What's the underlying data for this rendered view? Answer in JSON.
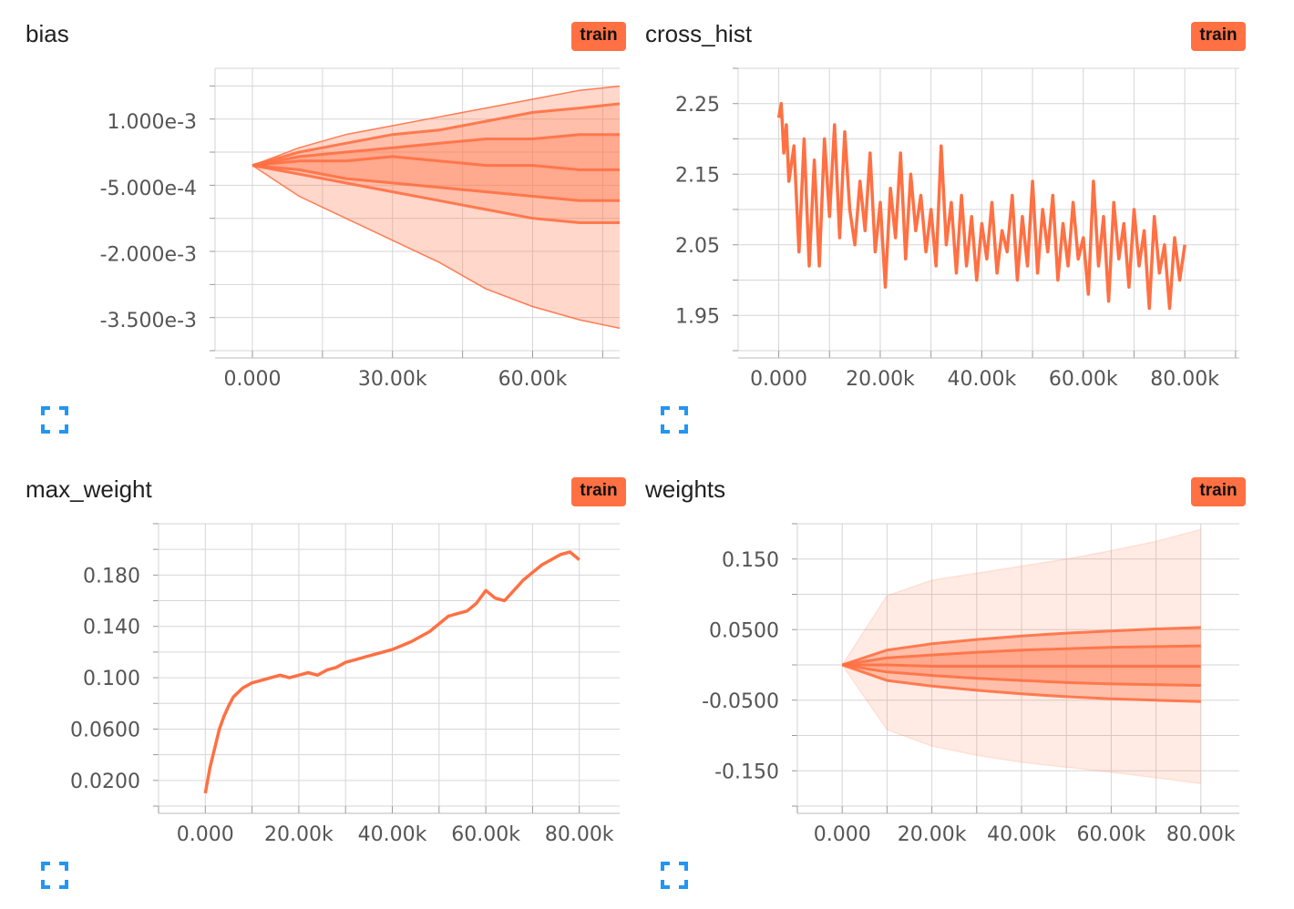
{
  "colors": {
    "accent": "#ff7043",
    "badge_bg": "#ff7043",
    "expand_icon": "#2196f3",
    "grid": "#d6d6d6"
  },
  "cards": [
    {
      "title": "bias",
      "badge": "train"
    },
    {
      "title": "cross_hist",
      "badge": "train"
    },
    {
      "title": "max_weight",
      "badge": "train"
    },
    {
      "title": "weights",
      "badge": "train"
    }
  ],
  "chart_data": [
    {
      "type": "area",
      "title": "bias",
      "variant": "distribution",
      "xlim": [
        -8000,
        80000
      ],
      "ylim": [
        -0.0042,
        0.0022
      ],
      "x_ticks": [
        0,
        30000,
        60000
      ],
      "x_tick_labels": [
        "0.000",
        "30.00k",
        "60.00k"
      ],
      "y_ticks": [
        0.001,
        -0.0005,
        -0.002,
        -0.0035
      ],
      "y_tick_labels": [
        "1.000e-3",
        "-5.000e-4",
        "-2.000e-3",
        "-3.500e-3"
      ],
      "x": [
        0,
        10000,
        20000,
        30000,
        40000,
        50000,
        60000,
        70000,
        79000
      ],
      "series": [
        {
          "values": [
            0,
            -0.0007,
            -0.0012,
            -0.0017,
            -0.0022,
            -0.0028,
            -0.0032,
            -0.0035,
            -0.0037
          ]
        },
        {
          "values": [
            0,
            -0.0002,
            -0.0004,
            -0.0006,
            -0.0008,
            -0.001,
            -0.0012,
            -0.0013,
            -0.0013
          ]
        },
        {
          "values": [
            0,
            -0.0001,
            -0.0003,
            -0.0004,
            -0.0005,
            -0.0006,
            -0.0007,
            -0.0008,
            -0.0008
          ]
        },
        {
          "values": [
            0,
            0.0001,
            0.0001,
            0.0002,
            0.0001,
            0.0,
            0.0,
            -0.0001,
            -0.0001
          ]
        },
        {
          "values": [
            0,
            0.0002,
            0.0003,
            0.0004,
            0.0005,
            0.0006,
            0.0006,
            0.0007,
            0.0007
          ]
        },
        {
          "values": [
            0,
            0.0003,
            0.0005,
            0.0007,
            0.0008,
            0.001,
            0.0012,
            0.0013,
            0.0014
          ]
        },
        {
          "values": [
            0,
            0.0004,
            0.0007,
            0.0009,
            0.0011,
            0.0013,
            0.0015,
            0.0017,
            0.0018
          ]
        }
      ]
    },
    {
      "type": "line",
      "title": "cross_hist",
      "xlim": [
        -8000,
        92000
      ],
      "ylim": [
        1.9,
        2.3
      ],
      "x_ticks": [
        0,
        20000,
        40000,
        60000,
        80000
      ],
      "x_tick_labels": [
        "0.000",
        "20.00k",
        "40.00k",
        "60.00k",
        "80.00k"
      ],
      "y_ticks": [
        2.25,
        2.15,
        2.05,
        1.95
      ],
      "y_tick_labels": [
        "2.25",
        "2.15",
        "2.05",
        "1.95"
      ],
      "x": [
        0,
        500,
        1000,
        1500,
        2000,
        3000,
        4000,
        5000,
        6000,
        7000,
        8000,
        9000,
        10000,
        11000,
        12000,
        13000,
        14000,
        15000,
        16000,
        17000,
        18000,
        19000,
        20000,
        21000,
        22000,
        23000,
        24000,
        25000,
        26000,
        27000,
        28000,
        29000,
        30000,
        31000,
        32000,
        33000,
        34000,
        35000,
        36000,
        37000,
        38000,
        39000,
        40000,
        41000,
        42000,
        43000,
        44000,
        45000,
        46000,
        47000,
        48000,
        49000,
        50000,
        51000,
        52000,
        53000,
        54000,
        55000,
        56000,
        57000,
        58000,
        59000,
        60000,
        61000,
        62000,
        63000,
        64000,
        65000,
        66000,
        67000,
        68000,
        69000,
        70000,
        71000,
        72000,
        73000,
        74000,
        75000,
        76000,
        77000,
        78000,
        79000,
        80000
      ],
      "y": [
        2.23,
        2.25,
        2.18,
        2.22,
        2.14,
        2.19,
        2.04,
        2.2,
        2.02,
        2.17,
        2.02,
        2.2,
        2.09,
        2.22,
        2.06,
        2.21,
        2.1,
        2.05,
        2.14,
        2.07,
        2.18,
        2.04,
        2.11,
        1.99,
        2.13,
        2.06,
        2.18,
        2.03,
        2.15,
        2.07,
        2.12,
        2.04,
        2.1,
        2.02,
        2.19,
        2.05,
        2.11,
        2.01,
        2.12,
        2.02,
        2.09,
        2.0,
        2.08,
        2.03,
        2.11,
        2.01,
        2.07,
        2.04,
        2.12,
        2.0,
        2.09,
        2.02,
        2.14,
        2.01,
        2.1,
        2.04,
        2.12,
        2.0,
        2.08,
        2.02,
        2.11,
        2.03,
        2.06,
        1.98,
        2.14,
        2.02,
        2.09,
        1.97,
        2.11,
        2.03,
        2.08,
        1.99,
        2.1,
        2.02,
        2.07,
        1.96,
        2.09,
        2.01,
        2.05,
        1.96,
        2.06,
        2.0,
        2.05
      ]
    },
    {
      "type": "line",
      "title": "max_weight",
      "xlim": [
        -10000,
        90000
      ],
      "ylim": [
        0,
        0.22
      ],
      "x_ticks": [
        0,
        20000,
        40000,
        60000,
        80000
      ],
      "x_tick_labels": [
        "0.000",
        "20.00k",
        "40.00k",
        "60.00k",
        "80.00k"
      ],
      "y_ticks": [
        0.18,
        0.14,
        0.1,
        0.06,
        0.02
      ],
      "y_tick_labels": [
        "0.180",
        "0.140",
        "0.100",
        "0.0600",
        "0.0200"
      ],
      "x": [
        0,
        1000,
        2000,
        3000,
        4000,
        5000,
        6000,
        8000,
        10000,
        12000,
        14000,
        16000,
        18000,
        20000,
        22000,
        24000,
        26000,
        28000,
        30000,
        32000,
        34000,
        36000,
        38000,
        40000,
        42000,
        44000,
        46000,
        48000,
        50000,
        52000,
        54000,
        56000,
        58000,
        60000,
        62000,
        64000,
        66000,
        68000,
        70000,
        72000,
        74000,
        76000,
        78000,
        80000
      ],
      "y": [
        0.01,
        0.03,
        0.045,
        0.06,
        0.07,
        0.078,
        0.085,
        0.092,
        0.096,
        0.098,
        0.1,
        0.102,
        0.1,
        0.102,
        0.104,
        0.102,
        0.106,
        0.108,
        0.112,
        0.114,
        0.116,
        0.118,
        0.12,
        0.122,
        0.125,
        0.128,
        0.132,
        0.136,
        0.142,
        0.148,
        0.15,
        0.152,
        0.158,
        0.168,
        0.162,
        0.16,
        0.168,
        0.176,
        0.182,
        0.188,
        0.192,
        0.196,
        0.198,
        0.192
      ]
    },
    {
      "type": "area",
      "title": "weights",
      "variant": "distribution",
      "xlim": [
        -10000,
        90000
      ],
      "ylim": [
        -0.2,
        0.2
      ],
      "x_ticks": [
        0,
        20000,
        40000,
        60000,
        80000
      ],
      "x_tick_labels": [
        "0.000",
        "20.00k",
        "40.00k",
        "60.00k",
        "80.00k"
      ],
      "y_ticks": [
        0.15,
        0.05,
        -0.05,
        -0.15
      ],
      "y_tick_labels": [
        "0.150",
        "0.0500",
        "-0.0500",
        "-0.150"
      ],
      "x": [
        0,
        10000,
        20000,
        30000,
        40000,
        50000,
        60000,
        70000,
        80000
      ],
      "series": [
        {
          "values": [
            0,
            -0.092,
            -0.115,
            -0.128,
            -0.138,
            -0.145,
            -0.152,
            -0.16,
            -0.168
          ]
        },
        {
          "values": [
            0,
            -0.022,
            -0.03,
            -0.036,
            -0.041,
            -0.045,
            -0.048,
            -0.05,
            -0.052
          ]
        },
        {
          "values": [
            0,
            -0.01,
            -0.015,
            -0.019,
            -0.022,
            -0.025,
            -0.027,
            -0.028,
            -0.029
          ]
        },
        {
          "values": [
            0,
            0.0,
            -0.002,
            -0.002,
            -0.002,
            -0.002,
            -0.002,
            -0.002,
            -0.002
          ]
        },
        {
          "values": [
            0,
            0.01,
            0.014,
            0.018,
            0.021,
            0.023,
            0.025,
            0.026,
            0.027
          ]
        },
        {
          "values": [
            0,
            0.021,
            0.03,
            0.036,
            0.041,
            0.045,
            0.048,
            0.051,
            0.053
          ]
        },
        {
          "values": [
            0,
            0.098,
            0.12,
            0.13,
            0.14,
            0.15,
            0.162,
            0.175,
            0.192
          ]
        }
      ]
    }
  ]
}
